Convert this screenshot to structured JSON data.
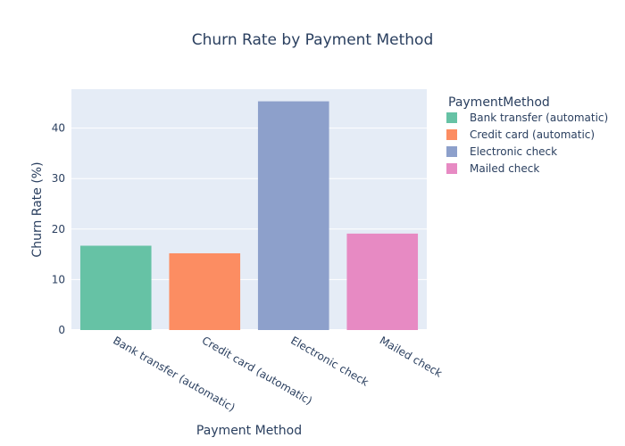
{
  "chart_data": {
    "type": "bar",
    "title": "Churn Rate by Payment Method",
    "xlabel": "Payment Method",
    "ylabel": "Churn Rate (%)",
    "categories": [
      "Bank transfer (automatic)",
      "Credit card (automatic)",
      "Electronic check",
      "Mailed check"
    ],
    "values": [
      16.7,
      15.2,
      45.3,
      19.1
    ],
    "colors": [
      "#66c2a5",
      "#fc8d62",
      "#8da0cb",
      "#e78ac3"
    ],
    "ylim": [
      0,
      47.7
    ],
    "yticks": [
      0,
      10,
      20,
      30,
      40
    ],
    "grid": true,
    "legend": {
      "title": "PaymentMethod",
      "placement": "right",
      "items": [
        "Bank transfer (automatic)",
        "Credit card (automatic)",
        "Electronic check",
        "Mailed check"
      ]
    },
    "plot_background": "#e5ecf6"
  }
}
